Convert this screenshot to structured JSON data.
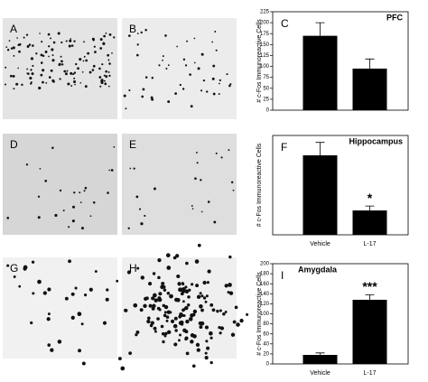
{
  "image_panels": [
    "A",
    "B",
    "D",
    "E",
    "G",
    "H"
  ],
  "chart_data": [
    {
      "type": "bar",
      "panel_label": "C",
      "title": "PFC",
      "ylabel": "# c-Fos Immunoreactive Cells",
      "categories": [
        null,
        null
      ],
      "values": [
        170,
        95
      ],
      "errors": [
        30,
        22
      ],
      "color": "#000000",
      "ylim": [
        0,
        225
      ],
      "yticks": [
        0,
        25,
        50,
        75,
        100,
        125,
        150,
        175,
        200,
        225
      ]
    },
    {
      "type": "bar",
      "panel_label": "F",
      "title": "Hippocampus",
      "ylabel": "# c-Fos Immunoreactive Cells",
      "categories": [
        "Vehicle",
        "L-17"
      ],
      "values": [
        0.8,
        0.245
      ],
      "errors": [
        0.13,
        0.045
      ],
      "color": "#000000",
      "ylim": [
        0,
        1
      ],
      "value_annotations": [
        null,
        "*"
      ]
    },
    {
      "type": "bar",
      "panel_label": "I",
      "title": "Amygdala",
      "ylabel": "# c-Fos Immunoreactive Cells",
      "categories": [
        "Vehicle",
        "L-17"
      ],
      "values": [
        18,
        128
      ],
      "errors": [
        4,
        10
      ],
      "color": "#000000",
      "ylim": [
        0,
        200
      ],
      "yticks": [
        0,
        20,
        40,
        60,
        80,
        100,
        120,
        140,
        160,
        180,
        200
      ],
      "value_annotations": [
        null,
        "***"
      ]
    }
  ]
}
